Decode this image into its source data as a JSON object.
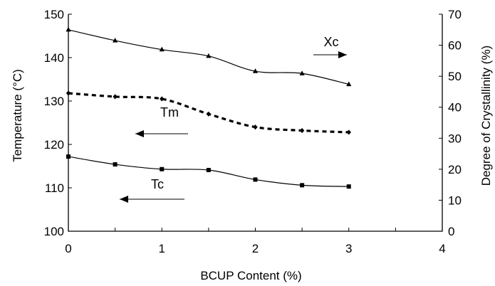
{
  "chart_data": {
    "type": "line",
    "title": "",
    "xlabel": "BCUP Content  (%)",
    "ylabel_left": "Temperature  (°C)",
    "ylabel_right": "Degree of Crystallinity  (%)",
    "xlim": [
      0,
      4
    ],
    "ylim_left": [
      100,
      150
    ],
    "ylim_right": [
      0,
      70
    ],
    "x_ticks": [
      "0",
      "1",
      "2",
      "3",
      "4"
    ],
    "y_ticks_left": [
      "100",
      "110",
      "120",
      "130",
      "140",
      "150"
    ],
    "y_ticks_right": [
      "0",
      "10",
      "20",
      "30",
      "40",
      "50",
      "60",
      "70"
    ],
    "grid": false,
    "x": [
      0,
      0.5,
      1,
      1.5,
      2,
      2.5,
      3
    ],
    "series": [
      {
        "name": "Xc",
        "axis": "right",
        "marker": "triangle",
        "line": "solid",
        "values": [
          65,
          61.5,
          58.6,
          56.5,
          51.6,
          50.9,
          47.4
        ]
      },
      {
        "name": "Tm",
        "axis": "left",
        "marker": "diamond",
        "line": "dashed",
        "values": [
          131.8,
          131,
          130.5,
          127,
          124,
          123.2,
          122.8
        ]
      },
      {
        "name": "Tc",
        "axis": "left",
        "marker": "square",
        "line": "solid",
        "values": [
          117.2,
          115.4,
          114.3,
          114.1,
          111.9,
          110.6,
          110.3
        ]
      }
    ],
    "annotations": [
      {
        "label": "Xc",
        "arrow": "right"
      },
      {
        "label": "Tm",
        "arrow": "left"
      },
      {
        "label": "Tc",
        "arrow": "left"
      }
    ]
  }
}
